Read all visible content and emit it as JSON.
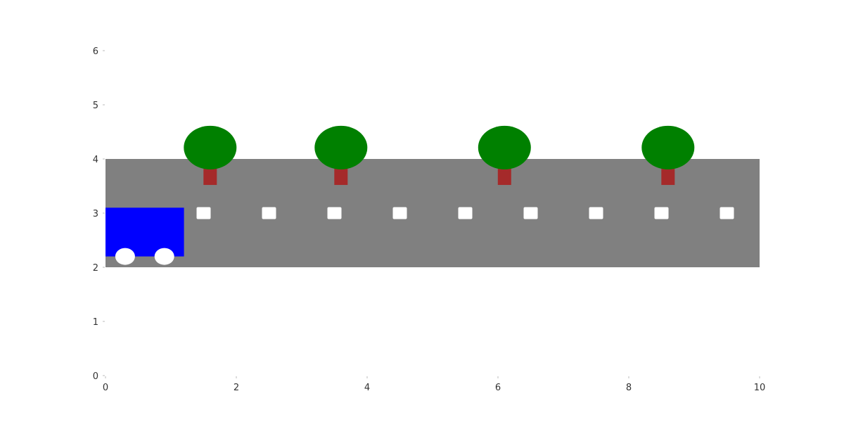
{
  "axes": {
    "x_ticks": [
      "0",
      "2",
      "4",
      "6",
      "8",
      "10"
    ],
    "y_ticks": [
      "0",
      "1",
      "2",
      "3",
      "4",
      "5",
      "6"
    ],
    "xlim": [
      0,
      10
    ],
    "ylim": [
      0,
      6
    ]
  },
  "colors": {
    "road": "#808080",
    "truck_body": "#0000ff",
    "wheel": "#ffffff",
    "lane_marking": "#ffffff",
    "tree_canopy": "#008000",
    "tree_trunk": "#a52a2a"
  },
  "road": {
    "x_range": [
      0,
      10
    ],
    "y_range": [
      2,
      4
    ]
  },
  "truck": {
    "body": {
      "x_range": [
        0,
        1.2
      ],
      "y_range": [
        2.2,
        3.1
      ]
    },
    "wheels": [
      {
        "cx": 0.3,
        "cy": 2.2
      },
      {
        "cx": 0.9,
        "cy": 2.2
      }
    ]
  },
  "lane_markings": [
    1.5,
    2.5,
    3.5,
    4.5,
    5.5,
    6.5,
    7.5,
    8.5,
    9.5
  ],
  "trees": [
    1.6,
    3.6,
    6.1,
    8.6
  ]
}
